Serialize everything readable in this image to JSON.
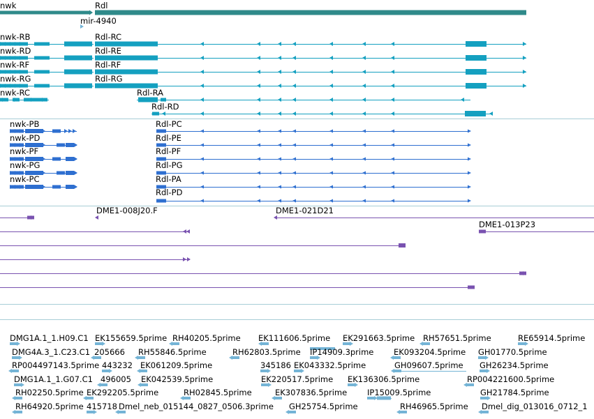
{
  "colors": {
    "teal": "#2f8a8a",
    "cyan": "#14a0c0",
    "blue": "#2e6fd0",
    "purple": "#7952b0",
    "est": "#74b4d6",
    "separator": "#a7cdd6"
  },
  "tracks": {
    "genes": {
      "labels": [
        "nwk",
        "Rdl",
        "mir-4940"
      ]
    },
    "transcripts": {
      "labels": [
        "nwk-RB",
        "Rdl-RC",
        "nwk-RD",
        "Rdl-RE",
        "nwk-RF",
        "Rdl-RF",
        "nwk-RG",
        "Rdl-RG",
        "nwk-RC",
        "Rdl-RA",
        "Rdl-RD"
      ]
    },
    "proteins": {
      "labels": [
        "nwk-PB",
        "Rdl-PC",
        "nwk-PD",
        "Rdl-PE",
        "nwk-PF",
        "Rdl-PF",
        "nwk-PG",
        "Rdl-PG",
        "nwk-PC",
        "Rdl-PA",
        "Rdl-PD"
      ]
    },
    "clones": {
      "labels": [
        "DME1-008J20.F",
        "DME1-021D21",
        "DME1-013P23"
      ]
    },
    "ests": {
      "labels": [
        "DMG1A.1_1.H09.C1",
        "EK155659.5prime",
        "RH40205.5prime",
        "EK111606.5prime",
        "EK291663.5prime",
        "RH57651.5prime",
        "RE65914.5prime",
        "DMG4A.3_1.C23.C1",
        "205666",
        "RH55846.5prime",
        "RH62803.5prime",
        "IP14909.3prime",
        "EK093204.5prime",
        "GH01770.5prime",
        "RP004497143.5prime",
        "443232",
        "EK061209.5prime",
        "345186",
        "EK043332.5prime",
        "GH09607.5prime",
        "GH26234.5prime",
        "DMG1A.1_1.G07.C1",
        "496005",
        "EK042539.5prime",
        "EK220517.5prime",
        "EK136306.5prime",
        "RP004221600.5prime",
        "RH02250.5prime",
        "EK292205.5prime",
        "RH02845.5prime",
        "EK307836.5prime",
        "IP15009.5prime",
        "GH21784.5prime",
        "RH64920.5prime",
        "415718",
        "Dmel_neb_015144_0827_0506.3prime",
        "GH25754.5prime",
        "RH46965.5prime",
        "Dmel_dig_013016_0712_1"
      ]
    }
  }
}
